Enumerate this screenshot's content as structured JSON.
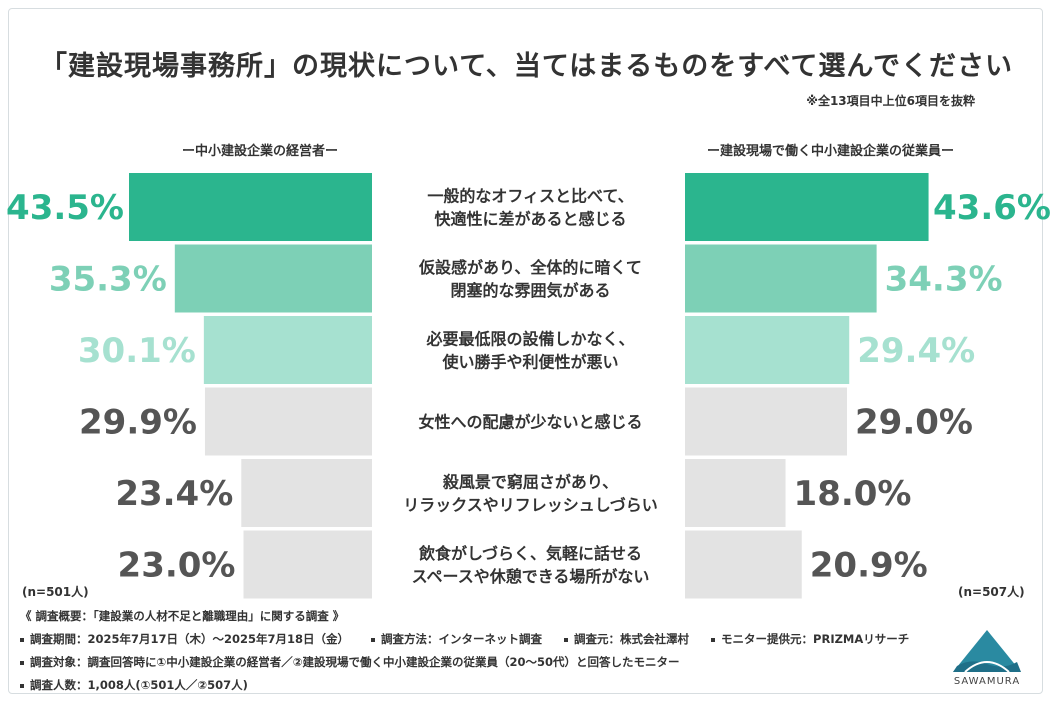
{
  "title": "「建設現場事務所」の現状について、当てはまるものをすべて選んでください",
  "note": "※全13項目中上位6項目を抜粋",
  "left_group_label": "ー中小建設企業の経営者ー",
  "right_group_label": "ー建設現場で働く中小建設企業の従業員ー",
  "left_n": "(n=501人)",
  "right_n": "(n=507人)",
  "colors": {
    "rank1": "#2bb58e",
    "rank2": "#7dd0b6",
    "rank3": "#a6e1d0",
    "other": "#e3e3e3",
    "other_text": "#555555"
  },
  "chart_data": {
    "type": "bar",
    "orientation": "horizontal-mirrored",
    "categories": [
      [
        "一般的なオフィスと比べて、",
        "快適性に差があると感じる"
      ],
      [
        "仮設感があり、全体的に暗くて",
        "閉塞的な雰囲気がある"
      ],
      [
        "必要最低限の設備しかなく、",
        "使い勝手や利便性が悪い"
      ],
      [
        "女性への配慮が少ないと感じる"
      ],
      [
        "殺風景で窮屈さがあり、",
        "リラックスやリフレッシュしづらい"
      ],
      [
        "飲食がしづらく、気軽に話せる",
        "スペースや休憩できる場所がない"
      ]
    ],
    "series": [
      {
        "name": "中小建設企業の経営者",
        "values": [
          43.5,
          35.3,
          30.1,
          29.9,
          23.4,
          23.0
        ],
        "labels": [
          "43.5%",
          "35.3%",
          "30.1%",
          "29.9%",
          "23.4%",
          "23.0%"
        ]
      },
      {
        "name": "建設現場で働く中小建設企業の従業員",
        "values": [
          43.6,
          34.3,
          29.4,
          29.0,
          18.0,
          20.9
        ],
        "labels": [
          "43.6%",
          "34.3%",
          "29.4%",
          "29.0%",
          "18.0%",
          "20.9%"
        ]
      }
    ],
    "xlim": [
      0,
      50
    ]
  },
  "footer": {
    "heading": "《 調査概要：「建設業の人材不足と離職理由」に関する調査 》",
    "period": "調査期間：2025年7月17日（木）〜2025年7月18日（金）",
    "method": "調査方法：インターネット調査",
    "source": "調査元：株式会社澤村",
    "provider": "モニター提供元：PRIZMAリサーチ",
    "target": "調査対象：調査回答時に①中小建設企業の経営者／②建設現場で働く中小建設企業の従業員（20〜50代）と回答したモニター",
    "count": "調査人数：1,008人(①501人／②507人)"
  },
  "logo_text": "SAWAMURA"
}
